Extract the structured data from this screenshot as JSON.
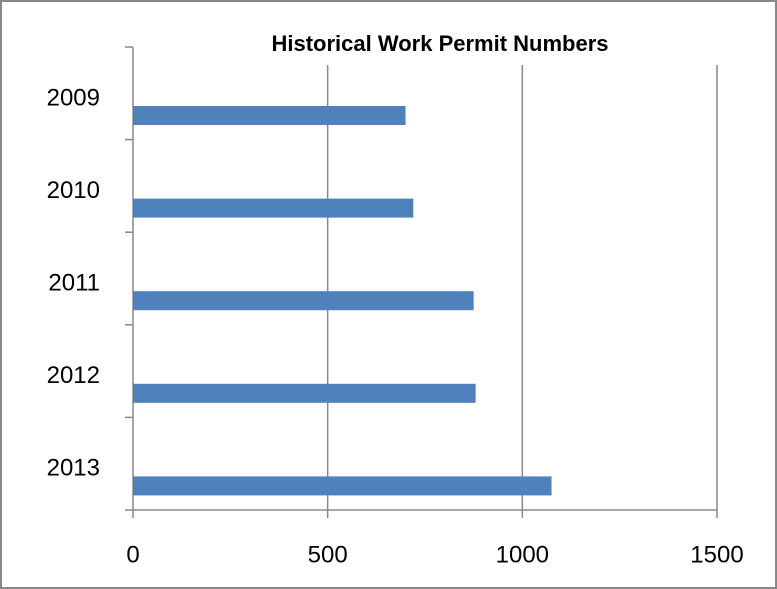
{
  "chart_data": {
    "type": "bar",
    "orientation": "horizontal",
    "title": "Historical Work Permit Numbers",
    "categories": [
      "2009",
      "2010",
      "2011",
      "2012",
      "2013"
    ],
    "values": [
      700,
      720,
      875,
      880,
      1075
    ],
    "color": "#4f81bd",
    "xlim": [
      0,
      1500
    ],
    "xticks": [
      0,
      500,
      1000,
      1500
    ],
    "grid": true
  }
}
